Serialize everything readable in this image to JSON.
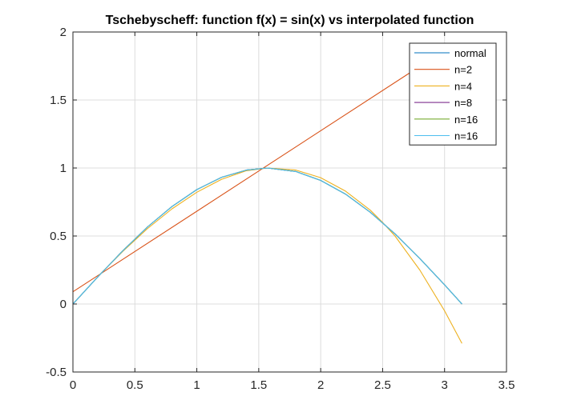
{
  "chart_data": {
    "type": "line",
    "title": "Tschebyscheff: function  f(x) = sin(x) vs interpolated function",
    "xlabel": "",
    "ylabel": "",
    "xlim": [
      0,
      3.5
    ],
    "ylim": [
      -0.5,
      2
    ],
    "xticks": [
      0,
      0.5,
      1,
      1.5,
      2,
      2.5,
      3,
      3.5
    ],
    "yticks": [
      -0.5,
      0,
      0.5,
      1,
      1.5,
      2
    ],
    "xtick_labels": [
      "0",
      "0.5",
      "1",
      "1.5",
      "2",
      "2.5",
      "3",
      "3.5"
    ],
    "ytick_labels": [
      "-0.5",
      "0",
      "0.5",
      "1",
      "1.5",
      "2"
    ],
    "grid": true,
    "legend_position": "top-right",
    "series": [
      {
        "name": "normal",
        "color": "#0072BD",
        "x": [
          0,
          0.2,
          0.4,
          0.6,
          0.8,
          1.0,
          1.2,
          1.4,
          1.57,
          1.8,
          2.0,
          2.2,
          2.4,
          2.6,
          2.8,
          3.0,
          3.14
        ],
        "y": [
          0,
          0.199,
          0.389,
          0.565,
          0.717,
          0.841,
          0.932,
          0.985,
          1.0,
          0.974,
          0.909,
          0.808,
          0.675,
          0.516,
          0.335,
          0.141,
          0.0
        ]
      },
      {
        "name": "n=2",
        "color": "#D95319",
        "x": [
          0,
          2.72
        ],
        "y": [
          0.09,
          1.7
        ]
      },
      {
        "name": "n=4",
        "color": "#EDB120",
        "x": [
          0.2,
          0.4,
          0.6,
          0.8,
          1.0,
          1.2,
          1.4,
          1.57,
          1.8,
          2.0,
          2.2,
          2.4,
          2.5,
          2.6,
          2.8,
          3.0,
          3.14
        ],
        "y": [
          0.2,
          0.385,
          0.553,
          0.7,
          0.822,
          0.917,
          0.98,
          1.0,
          0.985,
          0.929,
          0.83,
          0.69,
          0.6,
          0.5,
          0.25,
          -0.05,
          -0.29
        ]
      },
      {
        "name": "n=8",
        "color": "#7E2F8E",
        "x": [
          0,
          0.2,
          0.4,
          0.6,
          0.8,
          1.0,
          1.2,
          1.4,
          1.57,
          1.8,
          2.0,
          2.2,
          2.4,
          2.6,
          2.8,
          3.0,
          3.14
        ],
        "y": [
          0,
          0.199,
          0.389,
          0.565,
          0.717,
          0.841,
          0.932,
          0.985,
          1.0,
          0.974,
          0.909,
          0.808,
          0.675,
          0.516,
          0.335,
          0.141,
          0.0
        ]
      },
      {
        "name": "n=16",
        "color": "#77AC30",
        "x": [
          0,
          0.2,
          0.4,
          0.6,
          0.8,
          1.0,
          1.2,
          1.4,
          1.57,
          1.8,
          2.0,
          2.2,
          2.4,
          2.6,
          2.8,
          3.0,
          3.14
        ],
        "y": [
          0,
          0.199,
          0.389,
          0.565,
          0.717,
          0.841,
          0.932,
          0.985,
          1.0,
          0.974,
          0.909,
          0.808,
          0.675,
          0.516,
          0.335,
          0.141,
          0.0
        ]
      },
      {
        "name": "n=16",
        "color": "#4DBEEE",
        "x": [
          0,
          0.2,
          0.4,
          0.6,
          0.8,
          1.0,
          1.2,
          1.4,
          1.57,
          1.8,
          2.0,
          2.2,
          2.4,
          2.6,
          2.8,
          3.0,
          3.14
        ],
        "y": [
          0,
          0.199,
          0.389,
          0.565,
          0.717,
          0.841,
          0.932,
          0.985,
          1.0,
          0.974,
          0.909,
          0.808,
          0.675,
          0.516,
          0.335,
          0.141,
          0.0
        ]
      }
    ]
  }
}
